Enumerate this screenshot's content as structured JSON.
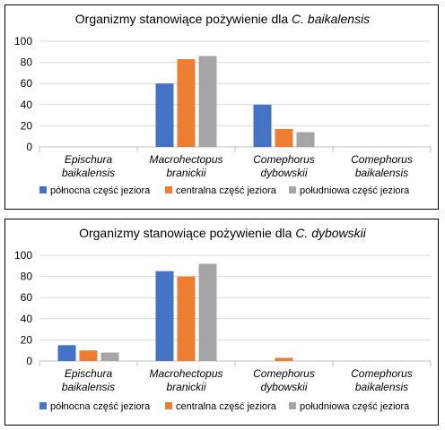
{
  "colors": {
    "north": "#4472C4",
    "central": "#ED7D31",
    "south": "#A5A5A5",
    "grid": "#d9d9d9"
  },
  "chart_data": [
    {
      "type": "bar",
      "title_prefix": "Organizmy stanowiące pożywienie dla ",
      "title_species": "C. baikalensis",
      "categories": [
        [
          "Epischura",
          "baikalensis"
        ],
        [
          "Macrohectopus",
          "branickii"
        ],
        [
          "Comephorus",
          "dybowskii"
        ],
        [
          "Comephorus",
          "baikalensis"
        ]
      ],
      "series": [
        {
          "name": "północna część jeziora",
          "values": [
            0,
            60,
            40,
            0
          ]
        },
        {
          "name": "centralna część jeziora",
          "values": [
            0,
            83,
            17,
            0
          ]
        },
        {
          "name": "południowa część jeziora",
          "values": [
            0,
            86,
            14,
            0
          ]
        }
      ],
      "ylim": [
        0,
        100
      ],
      "yticks": [
        "0",
        "20",
        "40",
        "60",
        "80",
        "100"
      ],
      "grid": true,
      "legend": "bottom"
    },
    {
      "type": "bar",
      "title_prefix": "Organizmy stanowiące pożywienie dla ",
      "title_species": "C. dybowskii",
      "categories": [
        [
          "Epischura",
          "baikalensis"
        ],
        [
          "Macrohectopus",
          "branickii"
        ],
        [
          "Comephorus",
          "dybowskii"
        ],
        [
          "Comephorus",
          "baikalensis"
        ]
      ],
      "series": [
        {
          "name": "północna część jeziora",
          "values": [
            15,
            85,
            0,
            0
          ]
        },
        {
          "name": "centralna część jeziora",
          "values": [
            10,
            80,
            3,
            0
          ]
        },
        {
          "name": "południowa część jeziora",
          "values": [
            8,
            92,
            0,
            0
          ]
        }
      ],
      "ylim": [
        0,
        100
      ],
      "yticks": [
        "0",
        "20",
        "40",
        "60",
        "80",
        "100"
      ],
      "grid": true,
      "legend": "bottom"
    }
  ]
}
